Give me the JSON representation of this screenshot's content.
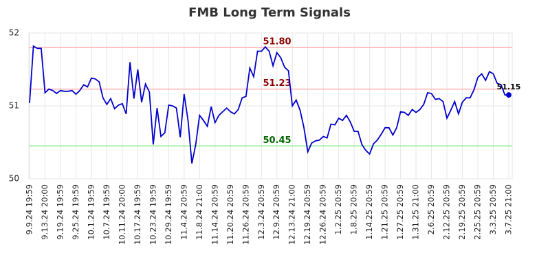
{
  "chart_data": {
    "type": "line",
    "title": "FMB Long Term Signals",
    "categories": [
      "9.9.24 19:59",
      null,
      null,
      null,
      "9.13.24 20:00",
      null,
      null,
      null,
      "9.19.24 19:59",
      null,
      null,
      null,
      "9.25.24 19:59",
      null,
      null,
      null,
      "10.1.24 19:59",
      null,
      null,
      null,
      "10.7.24 19:59",
      null,
      null,
      null,
      "10.11.24 20:00",
      null,
      null,
      null,
      "10.17.24 19:59",
      null,
      null,
      null,
      "10.23.24 19:59",
      null,
      null,
      null,
      "10.29.24 19:59",
      null,
      null,
      null,
      "11.4.24 20:59",
      null,
      null,
      null,
      "11.8.24 21:00",
      null,
      null,
      null,
      "11.14.24 20:59",
      null,
      null,
      null,
      "11.20.24 20:59",
      null,
      null,
      null,
      "11.26.24 20:59",
      null,
      null,
      null,
      "12.3.24 20:59",
      null,
      null,
      null,
      "12.9.24 20:59",
      null,
      null,
      null,
      "12.13.24 21:00",
      null,
      null,
      null,
      "12.19.24 20:59",
      null,
      null,
      null,
      "12.26.24 20:59",
      null,
      null,
      null,
      "1.2.25 20:59",
      null,
      null,
      null,
      "1.8.25 20:59",
      null,
      null,
      null,
      "1.14.25 20:59",
      null,
      null,
      null,
      "1.21.25 20:59",
      null,
      null,
      null,
      "1.27.25 20:59",
      null,
      null,
      null,
      "1.31.25 21:00",
      null,
      null,
      null,
      "2.6.25 20:59",
      null,
      null,
      null,
      "2.12.25 20:59",
      null,
      null,
      null,
      "2.19.25 20:59",
      null,
      null,
      null,
      "2.25.25 20:59",
      null,
      null,
      null,
      "3.3.25 20:59",
      null,
      null,
      null,
      "3.7.25 21:00"
    ],
    "values": [
      51.04,
      51.82,
      51.79,
      51.79,
      51.18,
      51.23,
      51.21,
      51.17,
      51.21,
      51.2,
      51.2,
      51.21,
      51.16,
      51.21,
      51.29,
      51.26,
      51.38,
      51.37,
      51.33,
      51.11,
      51.02,
      51.1,
      50.96,
      51.01,
      51.03,
      50.89,
      51.6,
      51.1,
      51.5,
      51.05,
      51.3,
      51.19,
      50.47,
      50.97,
      50.58,
      50.63,
      51.01,
      51.0,
      50.97,
      50.57,
      51.16,
      50.8,
      50.21,
      50.47,
      50.87,
      50.8,
      50.72,
      50.99,
      50.77,
      50.87,
      50.92,
      50.97,
      50.92,
      50.89,
      50.95,
      51.11,
      51.13,
      51.52,
      51.4,
      51.75,
      51.75,
      51.81,
      51.75,
      51.55,
      51.73,
      51.66,
      51.53,
      51.48,
      51.0,
      51.08,
      50.94,
      50.7,
      50.37,
      50.49,
      50.52,
      50.53,
      50.58,
      50.56,
      50.75,
      50.74,
      50.83,
      50.8,
      50.87,
      50.78,
      50.65,
      50.65,
      50.47,
      50.39,
      50.34,
      50.48,
      50.53,
      50.61,
      50.7,
      50.7,
      50.6,
      50.7,
      50.92,
      50.91,
      50.87,
      50.95,
      50.91,
      50.95,
      51.02,
      51.18,
      51.17,
      51.09,
      51.1,
      51.06,
      50.83,
      50.94,
      51.06,
      50.89,
      51.05,
      51.11,
      51.11,
      51.22,
      51.39,
      51.44,
      51.35,
      51.47,
      51.44,
      51.31,
      51.29,
      51.15,
      51.15
    ],
    "value_labels": [
      null,
      null,
      null,
      null,
      null,
      null,
      null,
      null,
      null,
      null,
      null,
      null,
      null,
      null,
      null,
      null,
      null,
      null,
      null,
      null,
      null,
      null,
      null,
      null,
      null,
      null,
      null,
      null,
      null,
      null,
      null,
      null,
      null,
      null,
      null,
      null,
      null,
      null,
      null,
      null,
      null,
      null,
      null,
      null,
      null,
      null,
      null,
      null,
      null,
      null,
      null,
      null,
      null,
      null,
      null,
      null,
      null,
      null,
      null,
      null,
      null,
      null,
      null,
      null,
      null,
      null,
      null,
      null,
      null,
      null,
      null,
      null,
      null,
      null,
      null,
      null,
      null,
      null,
      null,
      null,
      null,
      null,
      null,
      null,
      null,
      null,
      null,
      null,
      null,
      null,
      null,
      null,
      null,
      null,
      null,
      null,
      null,
      null,
      null,
      null,
      null,
      null,
      null,
      null,
      null,
      null,
      null,
      null,
      null,
      null,
      null,
      null,
      null,
      null,
      null,
      null,
      null,
      null,
      null,
      null,
      null,
      null,
      null,
      null,
      "51.15"
    ],
    "color": "#0000cc",
    "ylim": [
      50,
      52
    ],
    "yticks": [
      50,
      51,
      52
    ],
    "grid": true,
    "reference_lines": [
      {
        "value": 51.8,
        "label": "51.80",
        "color": "#ffb3b3",
        "label_color": "#8b0000"
      },
      {
        "value": 51.23,
        "label": "51.23",
        "color": "#ffb3b3",
        "label_color": "#8b0000"
      },
      {
        "value": 50.45,
        "label": "50.45",
        "color": "#90ee90",
        "label_color": "#006400"
      }
    ]
  }
}
